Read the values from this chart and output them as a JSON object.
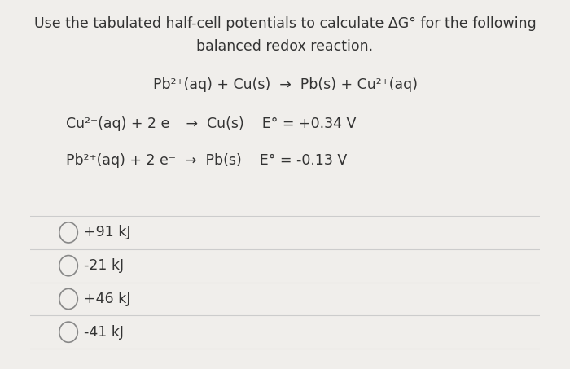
{
  "bg_color": "#f0eeeb",
  "title_line1": "Use the tabulated half-cell potentials to calculate ΔG° for the following",
  "title_line2": "balanced redox reaction.",
  "reaction_main": "Pb²⁺(aq) + Cu(s)  →  Pb(s) + Cu²⁺(aq)",
  "half_cell_1": "Cu²⁺(aq) + 2 e⁻  →  Cu(s)    E° = +0.34 V",
  "half_cell_2": "Pb²⁺(aq) + 2 e⁻  →  Pb(s)    E° = -0.13 V",
  "choices": [
    "+91 kJ",
    "-21 kJ",
    "+46 kJ",
    "-41 kJ"
  ],
  "divider_color": "#cccccc",
  "text_color": "#333333",
  "title_fontsize": 12.5,
  "body_fontsize": 12.5,
  "choice_fontsize": 12.5
}
